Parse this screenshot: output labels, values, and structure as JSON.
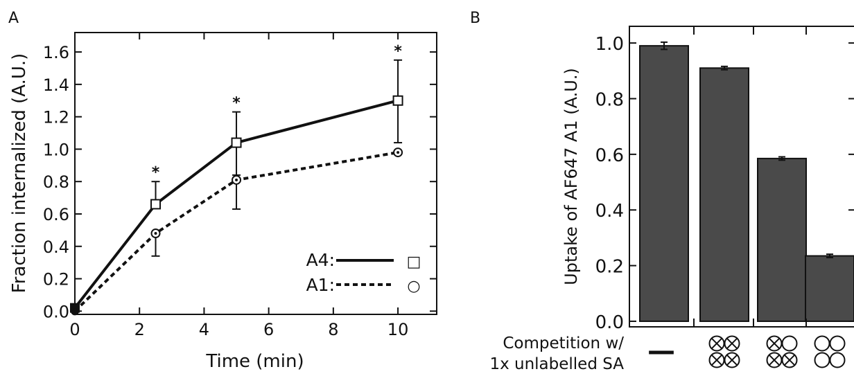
{
  "panels": {
    "a_label": "A",
    "b_label": "B"
  },
  "chart_data": [
    {
      "type": "line",
      "xlabel": "Time (min)",
      "ylabel": "Fraction internalized (A.U.)",
      "xlim": [
        0,
        11.2
      ],
      "ylim": [
        -0.02,
        1.72
      ],
      "x_ticks": [
        0,
        2,
        4,
        6,
        8,
        10
      ],
      "x_tick_labels": [
        "0",
        "2",
        "4",
        "6",
        "8",
        "10"
      ],
      "y_ticks": [
        0.0,
        0.2,
        0.4,
        0.6,
        0.8,
        1.0,
        1.2,
        1.4,
        1.6
      ],
      "y_tick_labels": [
        "0.0",
        "0.2",
        "0.4",
        "0.6",
        "0.8",
        "1.0",
        "1.2",
        "1.4",
        "1.6"
      ],
      "x": [
        0,
        2.5,
        5,
        10
      ],
      "series": [
        {
          "name": "A4:",
          "line": "solid",
          "marker": "square",
          "values": [
            0.02,
            0.66,
            1.04,
            1.3
          ],
          "err_low": [
            0.0,
            0.0,
            0.2,
            0.26
          ],
          "err_high": [
            0.0,
            0.14,
            0.19,
            0.25
          ]
        },
        {
          "name": "A1:",
          "line": "dashed",
          "marker": "circle",
          "values": [
            0.0,
            0.48,
            0.81,
            0.98
          ],
          "err_low": [
            0.0,
            0.14,
            0.18,
            0.0
          ],
          "err_high": [
            0.0,
            0.0,
            0.0,
            0.0
          ]
        }
      ],
      "significance": {
        "x": [
          2.5,
          5,
          10
        ],
        "label": "*"
      },
      "legend": {
        "placement": "bottom-right",
        "marker_glyphs": [
          "□",
          "○"
        ]
      },
      "grid": false
    },
    {
      "type": "bar",
      "ylabel": "Uptake of AF647 A1 (A.U.)",
      "ylim": [
        -0.02,
        1.06
      ],
      "y_ticks": [
        0.0,
        0.2,
        0.4,
        0.6,
        0.8,
        1.0
      ],
      "y_tick_labels": [
        "0.0",
        "0.2",
        "0.4",
        "0.6",
        "0.8",
        "1.0"
      ],
      "values": [
        0.99,
        0.91,
        0.585,
        0.235
      ],
      "errors": [
        0.013,
        0.006,
        0.006,
        0.006
      ],
      "bar_color": "#4a4a4a",
      "competition_label": [
        "Competition w/",
        "1x unlabelled SA"
      ],
      "competitors": [
        {
          "type": "none",
          "symbol": "—"
        },
        {
          "type": "glyphs",
          "top": [
            "x",
            "x"
          ],
          "bottom": [
            "x",
            "x"
          ]
        },
        {
          "type": "glyphs",
          "top": [
            "x",
            "o"
          ],
          "bottom": [
            "x",
            "x"
          ]
        },
        {
          "type": "glyphs",
          "top": [
            "o",
            "o"
          ],
          "bottom": [
            "o",
            "o"
          ]
        }
      ],
      "grid": false
    }
  ]
}
